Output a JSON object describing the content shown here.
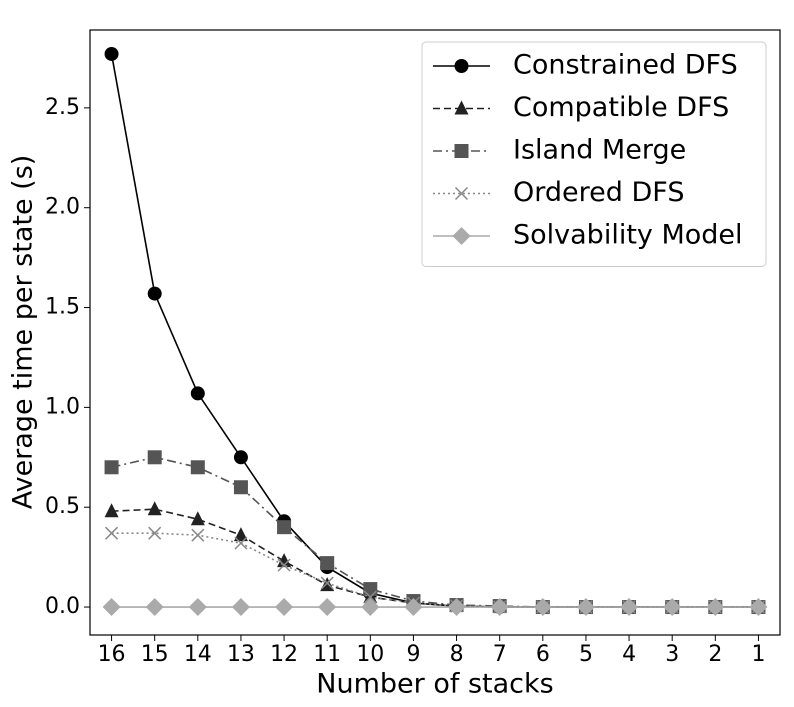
{
  "chart_data": {
    "type": "line",
    "xlabel": "Number of stacks",
    "ylabel": "Average time per state (s)",
    "categories": [
      "16",
      "15",
      "14",
      "13",
      "12",
      "11",
      "10",
      "9",
      "8",
      "7",
      "6",
      "5",
      "4",
      "3",
      "2",
      "1"
    ],
    "series": [
      {
        "name": "Constrained DFS",
        "color": "#000000",
        "marker": "circle",
        "dash": "solid",
        "values": [
          2.77,
          1.57,
          1.07,
          0.75,
          0.43,
          0.2,
          0.07,
          0.02,
          0.005,
          0,
          0,
          0,
          0,
          0,
          0,
          0
        ]
      },
      {
        "name": "Compatible DFS",
        "color": "#222222",
        "marker": "triangle",
        "dash": "dashed",
        "values": [
          0.48,
          0.49,
          0.44,
          0.36,
          0.23,
          0.11,
          0.05,
          0.02,
          0.005,
          0,
          0,
          0,
          0,
          0,
          0,
          0
        ]
      },
      {
        "name": "Island Merge",
        "color": "#555555",
        "marker": "square",
        "dash": "dashdot",
        "values": [
          0.7,
          0.75,
          0.7,
          0.6,
          0.4,
          0.22,
          0.09,
          0.03,
          0.01,
          0.005,
          0,
          0,
          0,
          0,
          0,
          0
        ]
      },
      {
        "name": "Ordered DFS",
        "color": "#888888",
        "marker": "x",
        "dash": "dotted",
        "values": [
          0.37,
          0.37,
          0.36,
          0.32,
          0.21,
          0.12,
          0.05,
          0.02,
          0.005,
          0,
          0,
          0,
          0,
          0,
          0,
          0
        ]
      },
      {
        "name": "Solvability Model",
        "color": "#aaaaaa",
        "marker": "diamond",
        "dash": "solid",
        "values": [
          0,
          0,
          0,
          0,
          0,
          0,
          0,
          0,
          0,
          0,
          0,
          0,
          0,
          0,
          0,
          0
        ]
      }
    ],
    "ylim": [
      -0.14,
      2.89
    ],
    "yticks": [
      {
        "value": 0,
        "label": "0.0"
      },
      0.5,
      {
        "value": 1,
        "label": "1.0"
      },
      1.5,
      {
        "value": 2,
        "label": "2.0"
      },
      2.5
    ],
    "grid": false,
    "legend": "upper right"
  }
}
